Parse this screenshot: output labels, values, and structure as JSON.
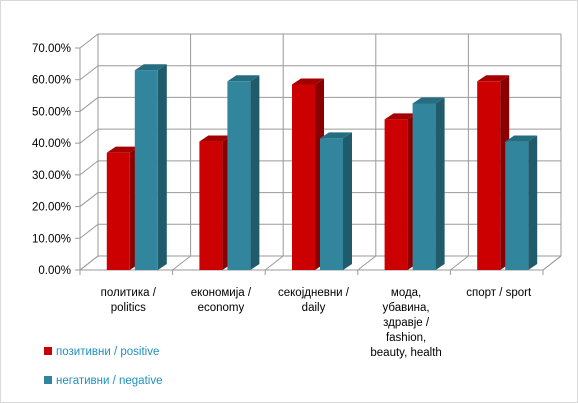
{
  "chart_data": {
    "type": "bar",
    "categories": [
      [
        "политика /",
        "politics"
      ],
      [
        "економија /",
        "economy"
      ],
      [
        "секојдневни /",
        "daily"
      ],
      [
        "мода,",
        "убавина,",
        "здравје /",
        "fashion,",
        "beauty, health"
      ],
      [
        "спорт / sport"
      ]
    ],
    "series": [
      {
        "name": "позитивни / positive",
        "values": [
          37,
          40.5,
          58.5,
          47.5,
          59.5
        ]
      },
      {
        "name": "негативни / negative",
        "values": [
          63,
          59.5,
          41.5,
          52.5,
          40.5
        ]
      }
    ],
    "ylim": [
      0,
      70
    ],
    "y_ticks": [
      "0.00%",
      "10.00%",
      "20.00%",
      "30.00%",
      "40.00%",
      "50.00%",
      "60.00%",
      "70.00%"
    ],
    "grid": true,
    "legend_position": "bottom-left",
    "colors": {
      "series_front": [
        "#cc0000",
        "#31859c"
      ],
      "series_side": [
        "#8a0000",
        "#1f5b6b"
      ],
      "series_top": [
        "#a50000",
        "#276d80"
      ],
      "grid": "#9a9a9a",
      "legend_text": [
        "#1f8fbf",
        "#1f8fbf"
      ]
    }
  }
}
